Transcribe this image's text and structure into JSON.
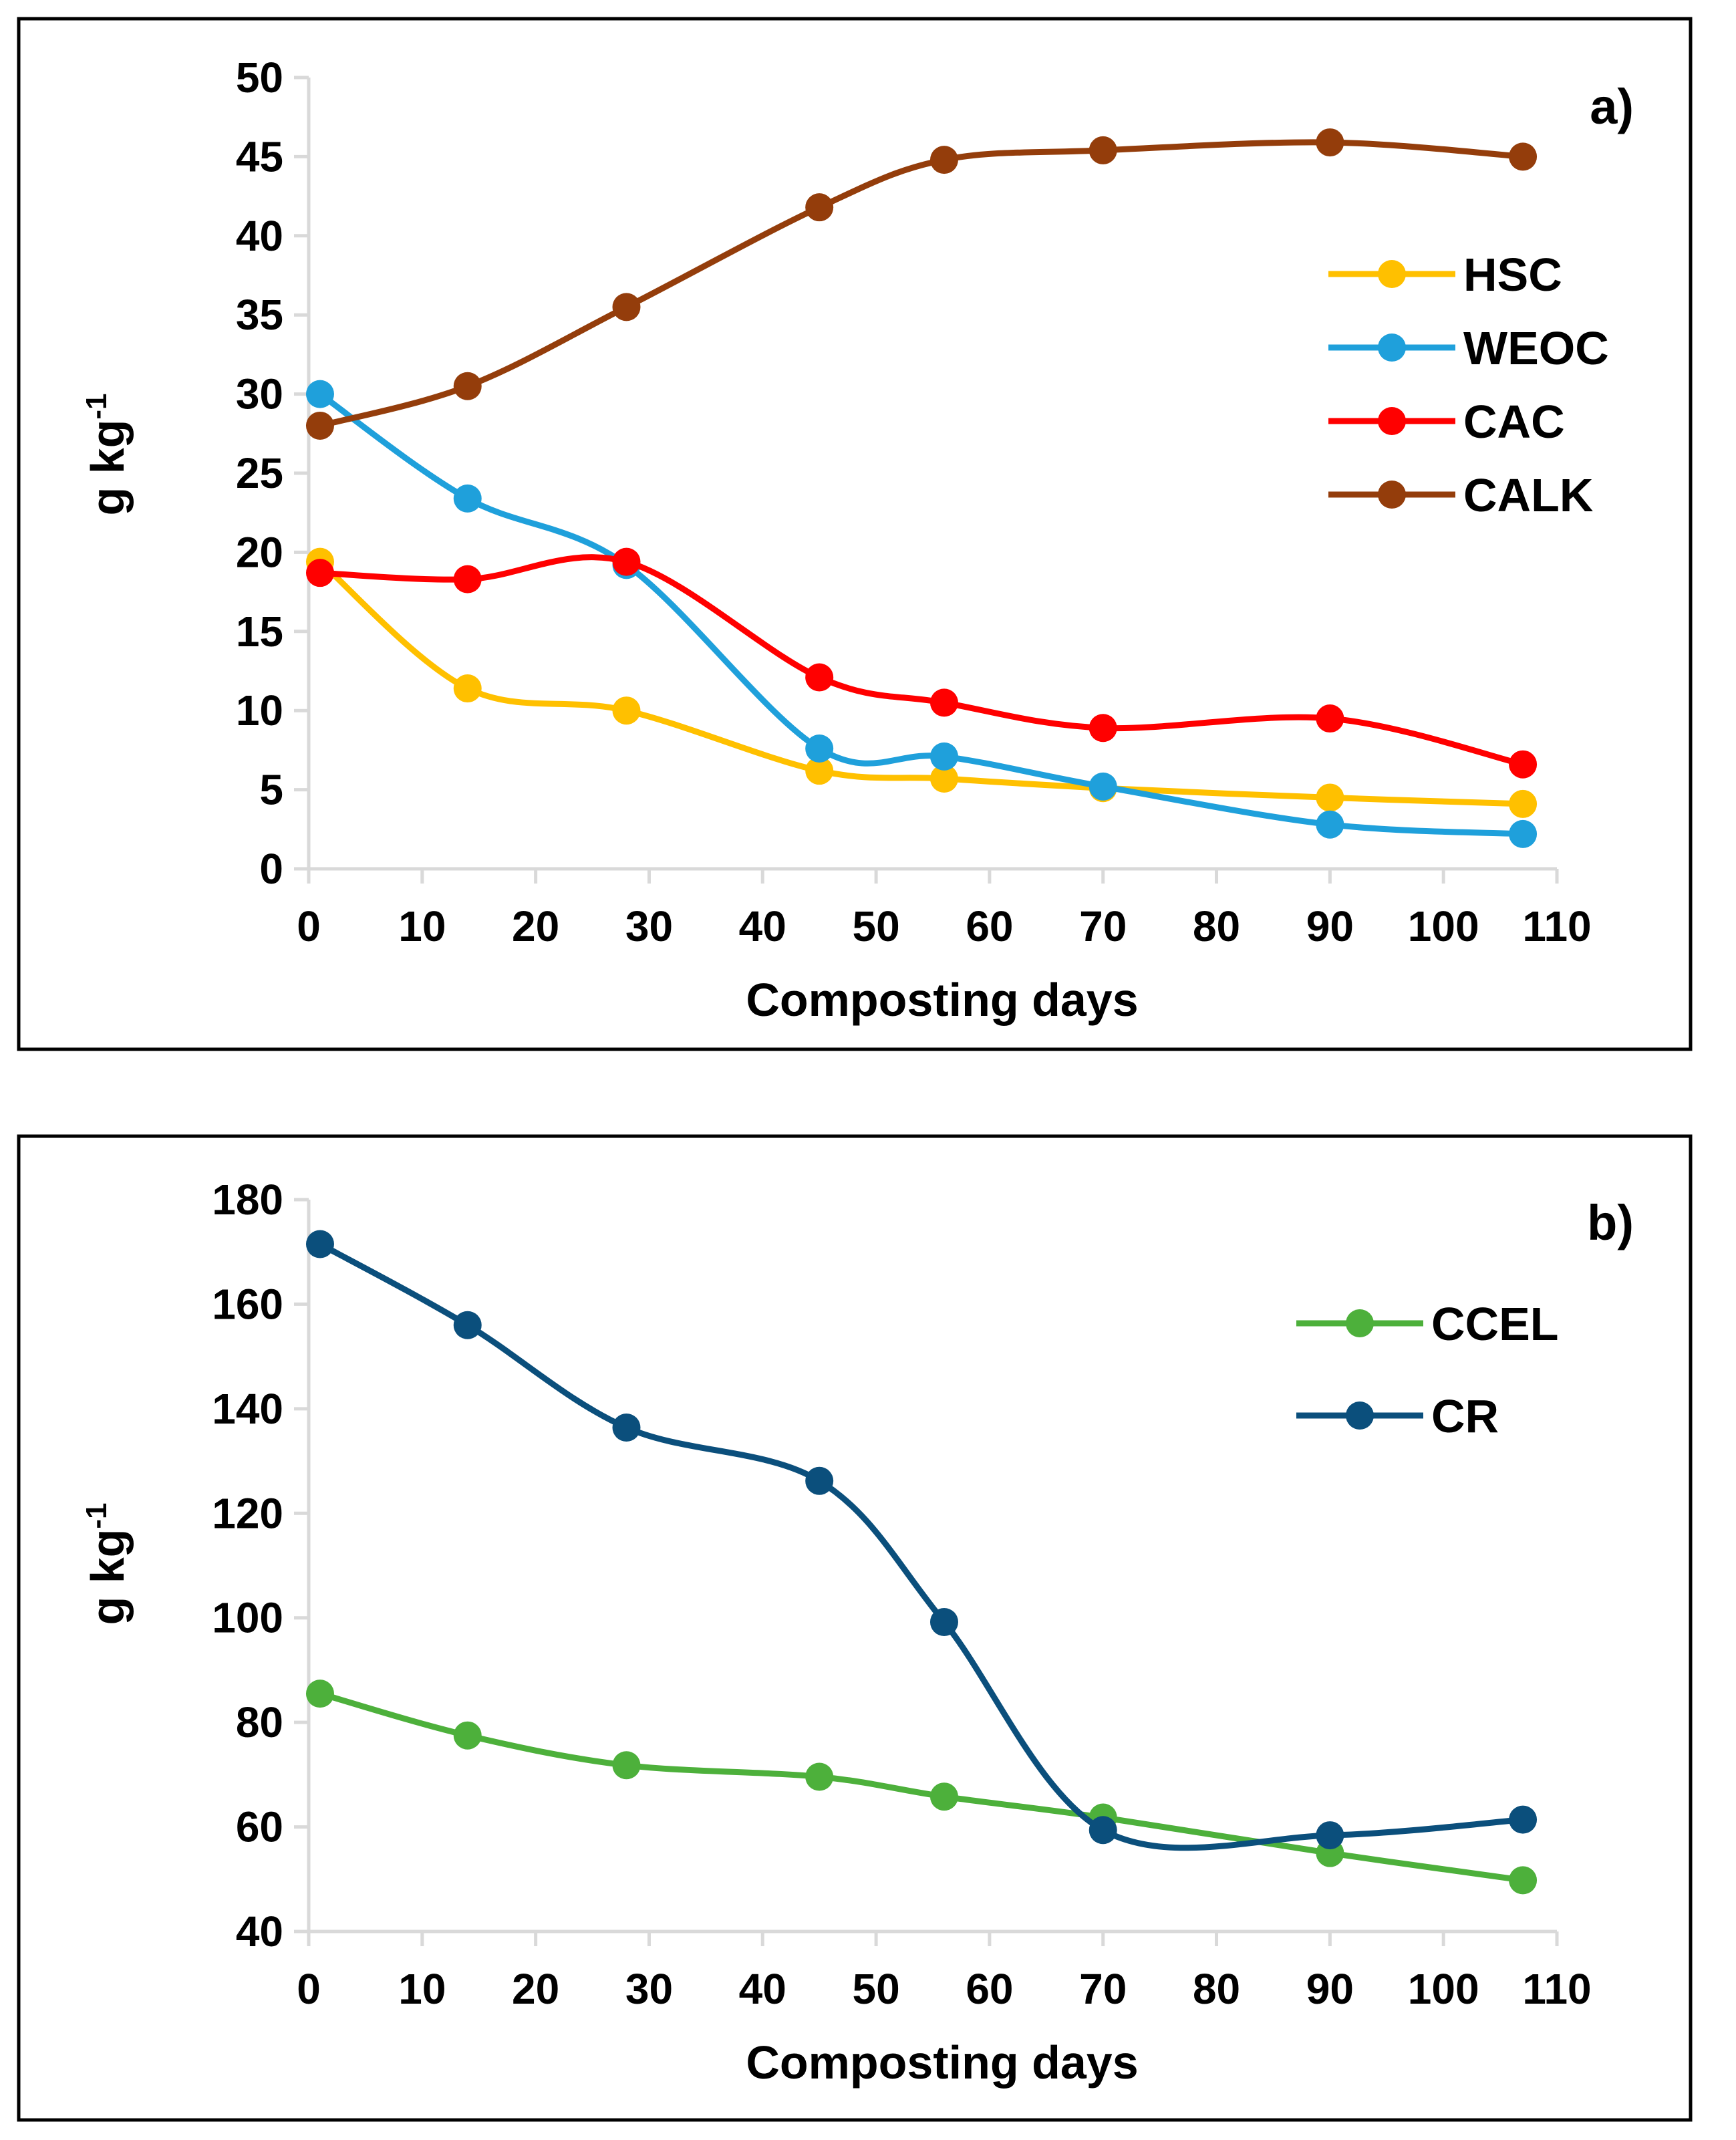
{
  "chart_data": [
    {
      "type": "line",
      "panel_label": "a)",
      "title": "",
      "xlabel": "Composting days",
      "ylabel": "g kg",
      "ylabel_superscript": "-1",
      "xlim": [
        0,
        110
      ],
      "ylim": [
        0,
        50
      ],
      "xticks": [
        0,
        10,
        20,
        30,
        40,
        50,
        60,
        70,
        80,
        90,
        100,
        110
      ],
      "yticks": [
        0,
        5,
        10,
        15,
        20,
        25,
        30,
        35,
        40,
        45,
        50
      ],
      "x": [
        1,
        14,
        28,
        45,
        56,
        70,
        90,
        107
      ],
      "legend_position": "right",
      "series": [
        {
          "name": "HSC",
          "color": "#FFC000",
          "values": [
            19.4,
            11.4,
            10.0,
            6.2,
            5.7,
            5.1,
            4.5,
            4.1
          ]
        },
        {
          "name": "WEOC",
          "color": "#1FA0DB",
          "values": [
            30.0,
            23.4,
            19.2,
            7.6,
            7.1,
            5.2,
            2.8,
            2.2
          ]
        },
        {
          "name": "CAC",
          "color": "#FF0000",
          "values": [
            18.7,
            18.3,
            19.4,
            12.1,
            10.5,
            8.9,
            9.5,
            6.6
          ]
        },
        {
          "name": "CALK",
          "color": "#943D0B",
          "values": [
            28.0,
            30.5,
            35.5,
            41.8,
            44.8,
            45.4,
            45.9,
            45.0
          ]
        }
      ]
    },
    {
      "type": "line",
      "panel_label": "b)",
      "title": "",
      "xlabel": "Composting days",
      "ylabel": "g kg",
      "ylabel_superscript": "-1",
      "xlim": [
        0,
        110
      ],
      "ylim": [
        40,
        180
      ],
      "xticks": [
        0,
        10,
        20,
        30,
        40,
        50,
        60,
        70,
        80,
        90,
        100,
        110
      ],
      "yticks": [
        40,
        60,
        80,
        100,
        120,
        140,
        160,
        180
      ],
      "x": [
        1,
        14,
        28,
        45,
        56,
        70,
        90,
        107
      ],
      "legend_position": "top-right",
      "series": [
        {
          "name": "CCEL",
          "color": "#4DB03B",
          "values": [
            85.5,
            77.5,
            71.8,
            69.6,
            65.8,
            61.8,
            55.0,
            49.8
          ]
        },
        {
          "name": "CR",
          "color": "#0B4F7C",
          "values": [
            171.5,
            156.0,
            136.4,
            126.2,
            99.2,
            59.4,
            58.4,
            61.4
          ]
        }
      ]
    }
  ]
}
